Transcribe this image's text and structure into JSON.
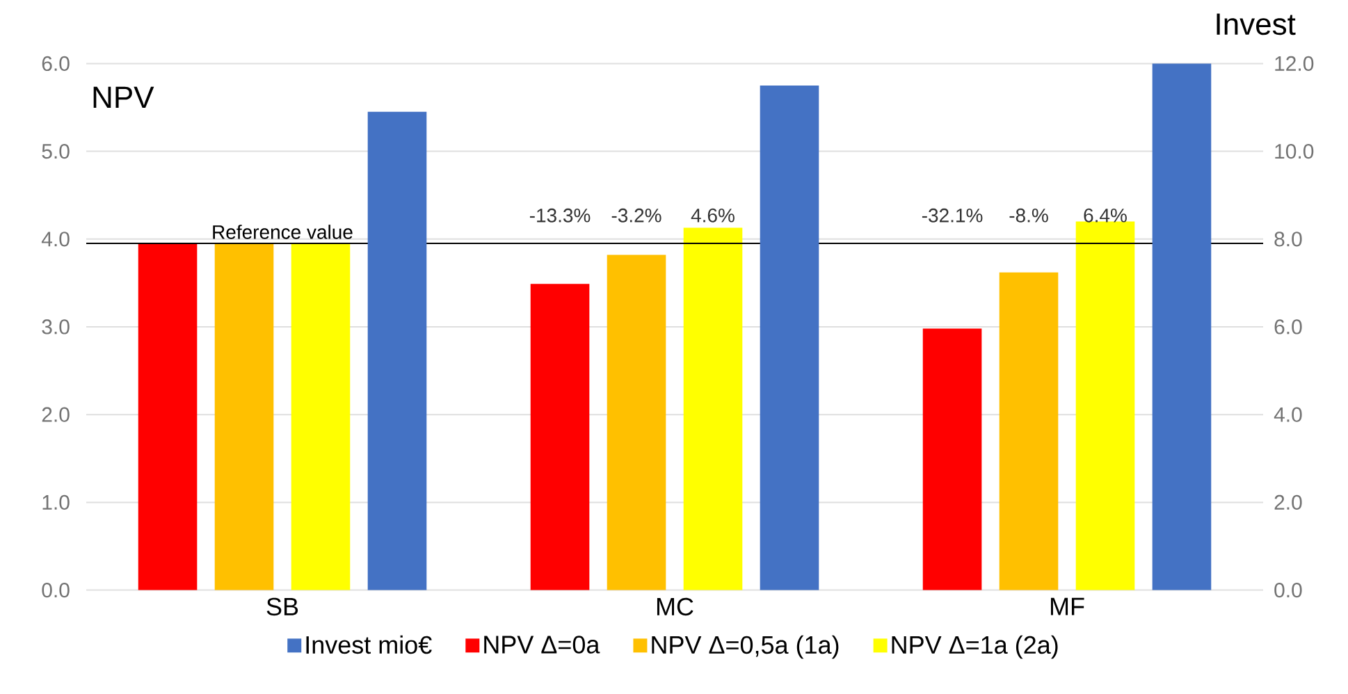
{
  "chart_data": {
    "type": "bar",
    "categories": [
      "SB",
      "MC",
      "MF"
    ],
    "series": [
      {
        "name": "Invest mio€",
        "color": "#4472c4",
        "axis": "y2",
        "values": [
          10.9,
          11.5,
          12.0
        ]
      },
      {
        "name": "NPV Δ=0a",
        "color": "#ff0000",
        "values": [
          3.95,
          3.49,
          2.98
        ]
      },
      {
        "name": "NPV Δ=0,5a (1a)",
        "color": "#ffc000",
        "values": [
          3.95,
          3.82,
          3.62
        ]
      },
      {
        "name": "NPV Δ=1a (2a)",
        "color": "#ffff00",
        "values": [
          3.95,
          4.13,
          4.2
        ]
      }
    ],
    "annotations": [
      "-13.3%",
      "-3.2%",
      "4.6%",
      "-32.1%",
      "-8.%",
      "6.4%"
    ],
    "ylabel": "NPV",
    "y2label": "Invest",
    "ylim": [
      0,
      6
    ],
    "yticks": [
      {
        "value": 0,
        "label": "0.0"
      },
      {
        "value": 1,
        "label": "1.0"
      },
      {
        "value": 2,
        "label": "2.0"
      },
      {
        "value": 3,
        "label": "3.0"
      },
      {
        "value": 4,
        "label": "4.0"
      },
      {
        "value": 5,
        "label": "5.0"
      },
      {
        "value": 6,
        "label": "6.0"
      }
    ],
    "y2lim": [
      0,
      12
    ],
    "y2ticks": [
      {
        "value": 0,
        "label": "0.0"
      },
      {
        "value": 2,
        "label": "2.0"
      },
      {
        "value": 4,
        "label": "4.0"
      },
      {
        "value": 6,
        "label": "6.0"
      },
      {
        "value": 8,
        "label": "8.0"
      },
      {
        "value": 10,
        "label": "10.0"
      },
      {
        "value": 12,
        "label": "12.0"
      }
    ],
    "ref_lines": [
      {
        "axis": "y",
        "value": 3.95,
        "label": "Reference value",
        "color": "#000000"
      }
    ],
    "grid": "y",
    "legend": "bottom"
  }
}
